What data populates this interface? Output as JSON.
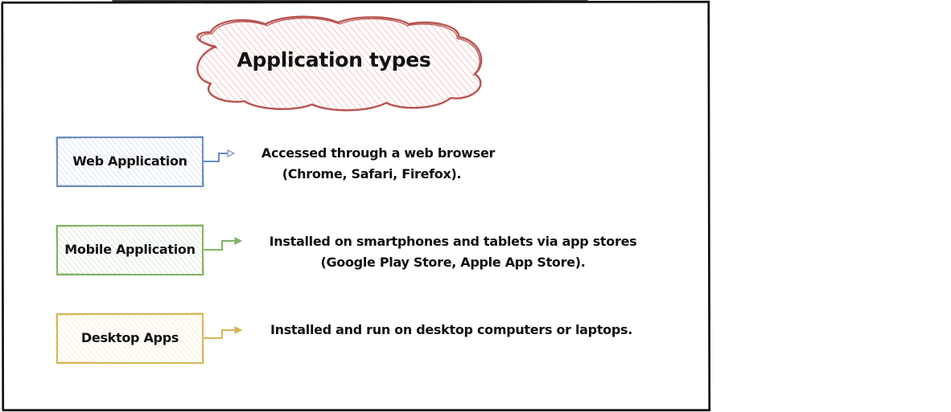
{
  "diagram": {
    "title": "Application types",
    "colors": {
      "title_fill": "#f8cecc",
      "title_stroke": "#b85450",
      "web_fill": "#dae8fc",
      "web_stroke": "#6c8ebf",
      "mobile_fill": "#d5e8d4",
      "mobile_stroke": "#82b366",
      "desktop_fill": "#fff2cc",
      "desktop_stroke": "#d6b656",
      "frame_stroke": "#111111"
    },
    "items": [
      {
        "label": "Web Application",
        "description_line1": "Accessed through a web browser",
        "description_line2": "(Chrome, Safari, Firefox)."
      },
      {
        "label": "Mobile Application",
        "description_line1": "Installed on smartphones and tablets via app stores",
        "description_line2": "(Google Play Store, Apple App Store)."
      },
      {
        "label": "Desktop Apps",
        "description_line1": "Installed and run on desktop computers or laptops."
      }
    ]
  }
}
